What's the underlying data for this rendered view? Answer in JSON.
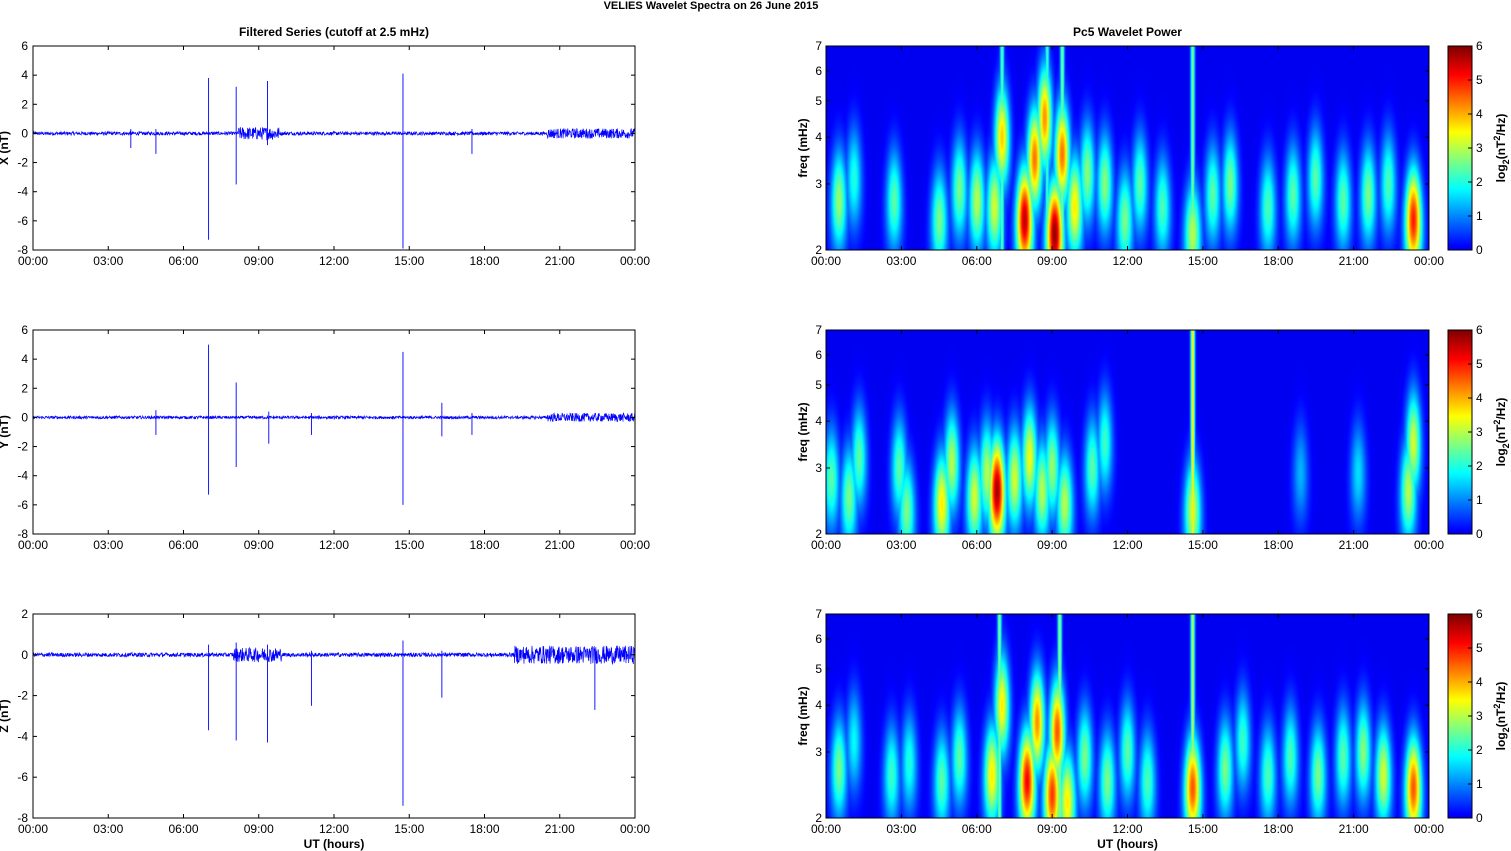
{
  "figure": {
    "title": "VELIES Wavelet Spectra on 26 June      2015"
  },
  "chart_data": [
    {
      "type": "line",
      "title": "Filtered Series (cutoff at 2.5 mHz)",
      "ylabel": "X (nT)",
      "xlabel": "",
      "x_ticks": [
        "00:00",
        "03:00",
        "06:00",
        "09:00",
        "12:00",
        "15:00",
        "18:00",
        "21:00",
        "00:00"
      ],
      "xlim": [
        0,
        24
      ],
      "ylim": [
        -8,
        6
      ],
      "y_ticks": [
        -8,
        -6,
        -4,
        -2,
        0,
        2,
        4,
        6
      ],
      "line_color": "#0000ff",
      "baseline_noise": 0.12,
      "spikes": [
        {
          "t": 7.0,
          "min": -7.3,
          "max": 3.8
        },
        {
          "t": 8.1,
          "min": -3.5,
          "max": 3.2
        },
        {
          "t": 9.35,
          "min": -0.8,
          "max": 3.6
        },
        {
          "t": 14.75,
          "min": -7.9,
          "max": 4.1
        },
        {
          "t": 3.9,
          "min": -1.0,
          "max": 0.3
        },
        {
          "t": 4.9,
          "min": -1.4,
          "max": 0.3
        },
        {
          "t": 17.5,
          "min": -1.4,
          "max": 0.3
        }
      ],
      "active_intervals": [
        {
          "start": 8.2,
          "end": 9.8,
          "amp": 0.45
        },
        {
          "start": 20.5,
          "end": 24.0,
          "amp": 0.35
        }
      ]
    },
    {
      "type": "line",
      "title": "",
      "ylabel": "Y (nT)",
      "xlabel": "",
      "x_ticks": [
        "00:00",
        "03:00",
        "06:00",
        "09:00",
        "12:00",
        "15:00",
        "18:00",
        "21:00",
        "00:00"
      ],
      "xlim": [
        0,
        24
      ],
      "ylim": [
        -8,
        6
      ],
      "y_ticks": [
        -8,
        -6,
        -4,
        -2,
        0,
        2,
        4,
        6
      ],
      "line_color": "#0000ff",
      "baseline_noise": 0.1,
      "spikes": [
        {
          "t": 7.0,
          "min": -5.3,
          "max": 5.0
        },
        {
          "t": 8.1,
          "min": -3.4,
          "max": 2.4
        },
        {
          "t": 9.4,
          "min": -1.8,
          "max": 0.4
        },
        {
          "t": 14.75,
          "min": -6.0,
          "max": 4.5
        },
        {
          "t": 4.9,
          "min": -1.2,
          "max": 0.5
        },
        {
          "t": 11.1,
          "min": -1.2,
          "max": 0.3
        },
        {
          "t": 16.3,
          "min": -1.3,
          "max": 1.0
        },
        {
          "t": 17.5,
          "min": -1.2,
          "max": 0.3
        }
      ],
      "active_intervals": [
        {
          "start": 20.5,
          "end": 24.0,
          "amp": 0.3
        }
      ]
    },
    {
      "type": "line",
      "title": "",
      "ylabel": "Z (nT)",
      "xlabel": "UT (hours)",
      "x_ticks": [
        "00:00",
        "03:00",
        "06:00",
        "09:00",
        "12:00",
        "15:00",
        "18:00",
        "21:00",
        "00:00"
      ],
      "xlim": [
        0,
        24
      ],
      "ylim": [
        -8,
        2
      ],
      "y_ticks": [
        -8,
        -6,
        -4,
        -2,
        0,
        2
      ],
      "line_color": "#0000ff",
      "baseline_noise": 0.1,
      "spikes": [
        {
          "t": 7.0,
          "min": -3.7,
          "max": 0.5
        },
        {
          "t": 8.1,
          "min": -4.2,
          "max": 0.6
        },
        {
          "t": 9.35,
          "min": -4.3,
          "max": 0.5
        },
        {
          "t": 11.1,
          "min": -2.5,
          "max": 0.2
        },
        {
          "t": 14.75,
          "min": -7.4,
          "max": 0.7
        },
        {
          "t": 16.3,
          "min": -2.1,
          "max": 0.2
        },
        {
          "t": 22.4,
          "min": -2.7,
          "max": 0.3
        }
      ],
      "active_intervals": [
        {
          "start": 8.0,
          "end": 9.9,
          "amp": 0.35
        },
        {
          "start": 19.2,
          "end": 24.0,
          "amp": 0.45
        }
      ]
    },
    {
      "type": "heatmap",
      "title": "Pc5 Wavelet Power",
      "ylabel": "freq (mHz)",
      "xlabel": "",
      "x_ticks": [
        "00:00",
        "03:00",
        "06:00",
        "09:00",
        "12:00",
        "15:00",
        "18:00",
        "21:00",
        "00:00"
      ],
      "xlim": [
        0,
        24
      ],
      "ylim": [
        2,
        7
      ],
      "y_scale": "log",
      "y_ticks": [
        2,
        3,
        4,
        5,
        6,
        7
      ],
      "colorbar": {
        "label_main": "log",
        "label_sub": "2",
        "label_rest": "(nT",
        "label_sup": "2",
        "label_end": "/Hz)",
        "range": [
          0,
          6
        ],
        "ticks": [
          0,
          1,
          2,
          3,
          4,
          5,
          6
        ]
      },
      "blobs": [
        {
          "t": 0.5,
          "f": 2.7,
          "p": 2.8
        },
        {
          "t": 1.1,
          "f": 3.1,
          "p": 2.0
        },
        {
          "t": 2.7,
          "f": 2.7,
          "p": 2.4
        },
        {
          "t": 4.5,
          "f": 2.4,
          "p": 2.6
        },
        {
          "t": 5.3,
          "f": 2.9,
          "p": 2.6
        },
        {
          "t": 6.0,
          "f": 2.7,
          "p": 3.0
        },
        {
          "t": 6.7,
          "f": 2.6,
          "p": 3.2
        },
        {
          "t": 7.0,
          "f": 4.0,
          "p": 3.8
        },
        {
          "t": 7.9,
          "f": 2.4,
          "p": 5.6
        },
        {
          "t": 8.3,
          "f": 3.5,
          "p": 4.4
        },
        {
          "t": 8.7,
          "f": 4.5,
          "p": 4.2
        },
        {
          "t": 9.1,
          "f": 2.2,
          "p": 5.9
        },
        {
          "t": 9.4,
          "f": 3.6,
          "p": 4.4
        },
        {
          "t": 9.9,
          "f": 2.6,
          "p": 3.6
        },
        {
          "t": 10.4,
          "f": 3.2,
          "p": 2.7
        },
        {
          "t": 11.1,
          "f": 3.0,
          "p": 2.7
        },
        {
          "t": 11.9,
          "f": 2.4,
          "p": 2.6
        },
        {
          "t": 12.5,
          "f": 3.0,
          "p": 2.4
        },
        {
          "t": 13.4,
          "f": 2.6,
          "p": 2.3
        },
        {
          "t": 14.6,
          "f": 2.2,
          "p": 3.0
        },
        {
          "t": 15.4,
          "f": 2.8,
          "p": 2.4
        },
        {
          "t": 16.1,
          "f": 3.0,
          "p": 2.6
        },
        {
          "t": 17.6,
          "f": 2.6,
          "p": 2.3
        },
        {
          "t": 18.6,
          "f": 2.8,
          "p": 2.4
        },
        {
          "t": 19.5,
          "f": 3.1,
          "p": 2.4
        },
        {
          "t": 20.6,
          "f": 2.7,
          "p": 2.4
        },
        {
          "t": 21.6,
          "f": 2.8,
          "p": 2.6
        },
        {
          "t": 22.4,
          "f": 3.0,
          "p": 2.3
        },
        {
          "t": 23.4,
          "f": 2.4,
          "p": 5.0
        }
      ],
      "streaks": [
        {
          "t": 7.0,
          "p": 2.4
        },
        {
          "t": 8.8,
          "p": 2.2
        },
        {
          "t": 9.4,
          "p": 2.6
        },
        {
          "t": 14.6,
          "p": 2.6
        }
      ]
    },
    {
      "type": "heatmap",
      "title": "",
      "ylabel": "freq (mHz)",
      "xlabel": "",
      "x_ticks": [
        "00:00",
        "03:00",
        "06:00",
        "09:00",
        "12:00",
        "15:00",
        "18:00",
        "21:00",
        "00:00"
      ],
      "xlim": [
        0,
        24
      ],
      "ylim": [
        2,
        7
      ],
      "y_scale": "log",
      "y_ticks": [
        2,
        3,
        4,
        5,
        6,
        7
      ],
      "colorbar": {
        "label_main": "log",
        "label_sub": "2",
        "label_rest": "(nT",
        "label_sup": "2",
        "label_end": "/Hz)",
        "range": [
          0,
          6
        ],
        "ticks": [
          0,
          1,
          2,
          3,
          4,
          5,
          6
        ]
      },
      "blobs": [
        {
          "t": 0.2,
          "f": 2.8,
          "p": 2.4
        },
        {
          "t": 0.9,
          "f": 2.5,
          "p": 2.6
        },
        {
          "t": 1.3,
          "f": 3.2,
          "p": 2.4
        },
        {
          "t": 2.9,
          "f": 3.0,
          "p": 2.4
        },
        {
          "t": 3.2,
          "f": 2.3,
          "p": 2.6
        },
        {
          "t": 4.6,
          "f": 2.4,
          "p": 3.6
        },
        {
          "t": 5.0,
          "f": 3.1,
          "p": 3.0
        },
        {
          "t": 5.9,
          "f": 2.5,
          "p": 3.2
        },
        {
          "t": 6.4,
          "f": 2.9,
          "p": 3.0
        },
        {
          "t": 6.8,
          "f": 2.6,
          "p": 5.8
        },
        {
          "t": 7.5,
          "f": 2.8,
          "p": 3.2
        },
        {
          "t": 8.1,
          "f": 3.2,
          "p": 3.4
        },
        {
          "t": 8.6,
          "f": 2.6,
          "p": 3.0
        },
        {
          "t": 9.0,
          "f": 3.0,
          "p": 2.8
        },
        {
          "t": 9.5,
          "f": 2.4,
          "p": 3.0
        },
        {
          "t": 10.6,
          "f": 3.0,
          "p": 2.4
        },
        {
          "t": 11.1,
          "f": 3.5,
          "p": 2.2
        },
        {
          "t": 14.6,
          "f": 2.3,
          "p": 3.2
        },
        {
          "t": 18.9,
          "f": 2.9,
          "p": 1.3
        },
        {
          "t": 21.2,
          "f": 2.9,
          "p": 1.6
        },
        {
          "t": 23.2,
          "f": 2.6,
          "p": 3.0
        },
        {
          "t": 23.4,
          "f": 3.5,
          "p": 3.2
        }
      ],
      "streaks": [
        {
          "t": 14.6,
          "p": 3.6
        }
      ]
    },
    {
      "type": "heatmap",
      "title": "",
      "ylabel": "freq (mHz)",
      "xlabel": "UT (hours)",
      "x_ticks": [
        "00:00",
        "03:00",
        "06:00",
        "09:00",
        "12:00",
        "15:00",
        "18:00",
        "21:00",
        "00:00"
      ],
      "xlim": [
        0,
        24
      ],
      "ylim": [
        2,
        7
      ],
      "y_scale": "log",
      "y_ticks": [
        2,
        3,
        4,
        5,
        6,
        7
      ],
      "colorbar": {
        "label_main": "log",
        "label_sub": "2",
        "label_rest": "(nT",
        "label_sup": "2",
        "label_end": "/Hz)",
        "range": [
          0,
          6
        ],
        "ticks": [
          0,
          1,
          2,
          3,
          4,
          5,
          6
        ]
      },
      "blobs": [
        {
          "t": 0.5,
          "f": 2.7,
          "p": 2.6
        },
        {
          "t": 1.1,
          "f": 3.2,
          "p": 1.8
        },
        {
          "t": 2.6,
          "f": 2.6,
          "p": 2.2
        },
        {
          "t": 3.3,
          "f": 2.8,
          "p": 2.0
        },
        {
          "t": 4.6,
          "f": 2.5,
          "p": 2.4
        },
        {
          "t": 5.3,
          "f": 2.9,
          "p": 2.4
        },
        {
          "t": 6.6,
          "f": 2.6,
          "p": 3.6
        },
        {
          "t": 7.0,
          "f": 4.0,
          "p": 3.6
        },
        {
          "t": 8.0,
          "f": 2.5,
          "p": 5.2
        },
        {
          "t": 8.4,
          "f": 3.6,
          "p": 4.2
        },
        {
          "t": 9.0,
          "f": 2.3,
          "p": 4.8
        },
        {
          "t": 9.2,
          "f": 3.4,
          "p": 4.6
        },
        {
          "t": 9.6,
          "f": 2.2,
          "p": 3.6
        },
        {
          "t": 10.3,
          "f": 2.9,
          "p": 2.6
        },
        {
          "t": 11.2,
          "f": 2.5,
          "p": 2.6
        },
        {
          "t": 12.0,
          "f": 3.0,
          "p": 2.4
        },
        {
          "t": 12.8,
          "f": 2.5,
          "p": 2.3
        },
        {
          "t": 14.6,
          "f": 2.4,
          "p": 4.6
        },
        {
          "t": 15.9,
          "f": 2.7,
          "p": 2.6
        },
        {
          "t": 16.6,
          "f": 3.2,
          "p": 2.2
        },
        {
          "t": 17.6,
          "f": 2.6,
          "p": 2.3
        },
        {
          "t": 18.5,
          "f": 2.9,
          "p": 2.3
        },
        {
          "t": 19.6,
          "f": 2.6,
          "p": 2.6
        },
        {
          "t": 20.6,
          "f": 2.9,
          "p": 2.4
        },
        {
          "t": 21.4,
          "f": 3.0,
          "p": 2.7
        },
        {
          "t": 22.2,
          "f": 2.6,
          "p": 3.2
        },
        {
          "t": 23.4,
          "f": 2.4,
          "p": 4.6
        }
      ],
      "streaks": [
        {
          "t": 6.9,
          "p": 2.6
        },
        {
          "t": 9.3,
          "p": 2.8
        },
        {
          "t": 14.6,
          "p": 3.0
        }
      ]
    }
  ]
}
